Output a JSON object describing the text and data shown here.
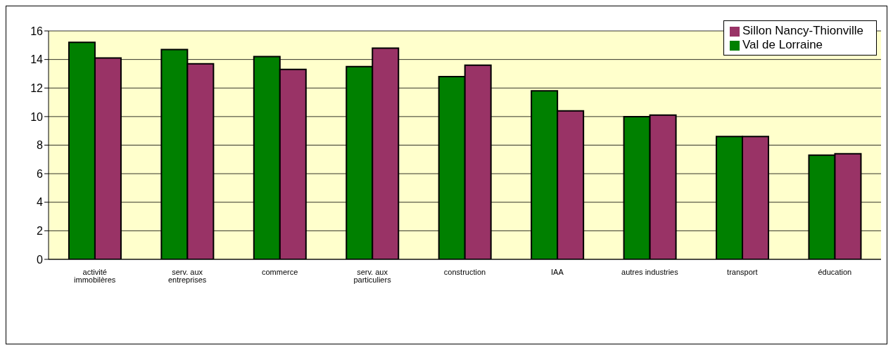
{
  "chart_data": {
    "type": "bar",
    "categories": [
      "activité immobilères",
      "serv. aux entreprises",
      "commerce",
      "serv. aux particuliers",
      "construction",
      "IAA",
      "autres industries",
      "transport",
      "éducation"
    ],
    "series": [
      {
        "name": "Val de Lorraine",
        "color": "#008000",
        "values": [
          15.2,
          14.7,
          14.2,
          13.5,
          12.8,
          11.8,
          10.0,
          8.6,
          7.3
        ]
      },
      {
        "name": "Sillon Nancy-Thionville",
        "color": "#993366",
        "values": [
          14.1,
          13.7,
          13.3,
          14.8,
          13.6,
          10.4,
          10.1,
          8.6,
          7.4
        ]
      }
    ],
    "ylim": [
      0,
      16
    ],
    "yticks": [
      0,
      2,
      4,
      6,
      8,
      10,
      12,
      14,
      16
    ],
    "grid": "y",
    "legend": "top right"
  }
}
